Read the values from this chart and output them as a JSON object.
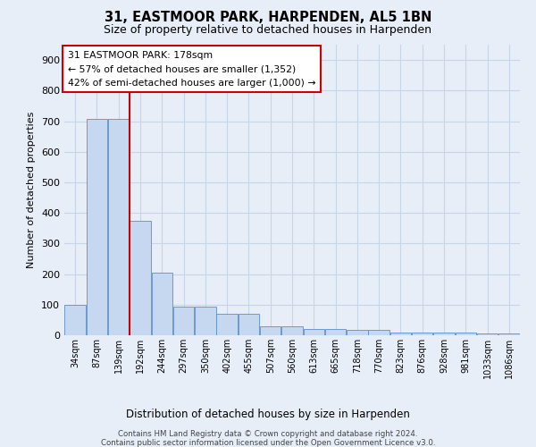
{
  "title": "31, EASTMOOR PARK, HARPENDEN, AL5 1BN",
  "subtitle": "Size of property relative to detached houses in Harpenden",
  "xlabel": "Distribution of detached houses by size in Harpenden",
  "ylabel": "Number of detached properties",
  "categories": [
    "34sqm",
    "87sqm",
    "139sqm",
    "192sqm",
    "244sqm",
    "297sqm",
    "350sqm",
    "402sqm",
    "455sqm",
    "507sqm",
    "560sqm",
    "613sqm",
    "665sqm",
    "718sqm",
    "770sqm",
    "823sqm",
    "876sqm",
    "928sqm",
    "981sqm",
    "1033sqm",
    "1086sqm"
  ],
  "values": [
    100,
    707,
    707,
    375,
    205,
    95,
    95,
    70,
    70,
    30,
    30,
    20,
    20,
    18,
    18,
    8,
    8,
    8,
    8,
    5,
    5
  ],
  "bar_color": "#c5d8f0",
  "bar_edge_color": "#5b8fc9",
  "vline_x": 2.5,
  "annotation_title": "31 EASTMOOR PARK: 178sqm",
  "annotation_line1": "← 57% of detached houses are smaller (1,352)",
  "annotation_line2": "42% of semi-detached houses are larger (1,000) →",
  "annotation_box_color": "#ffffff",
  "annotation_box_edge": "#cc0000",
  "vline_color": "#cc0000",
  "grid_color": "#c8d4e8",
  "ylim": [
    0,
    950
  ],
  "yticks": [
    0,
    100,
    200,
    300,
    400,
    500,
    600,
    700,
    800,
    900
  ],
  "footnote1": "Contains HM Land Registry data © Crown copyright and database right 2024.",
  "footnote2": "Contains public sector information licensed under the Open Government Licence v3.0.",
  "bg_color": "#e8eef8"
}
